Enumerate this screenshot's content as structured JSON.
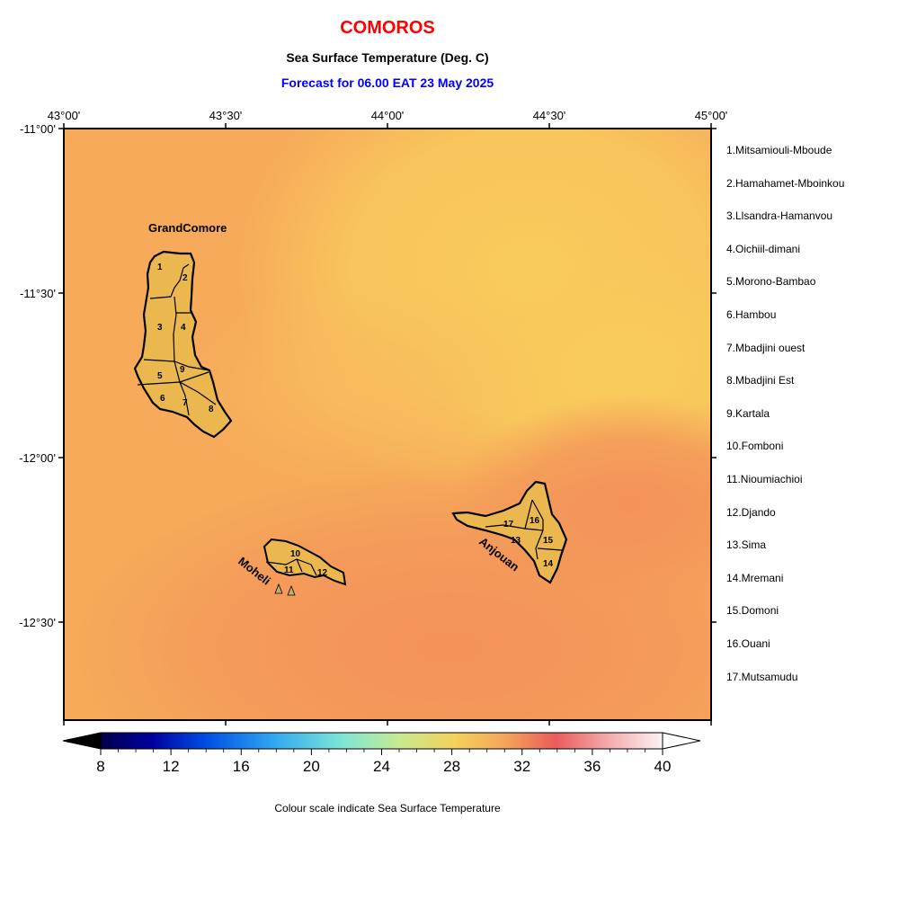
{
  "header": {
    "country": "COMOROS",
    "variable": "Sea Surface Temperature (Deg. C)",
    "forecast": "Forecast for  06.00 EAT 23 May 2025"
  },
  "axes": {
    "lon_labels": [
      "43°00'",
      "43°30'",
      "44°00'",
      "44°30'",
      "45°00'"
    ],
    "lat_labels": [
      "-11°00'",
      "-11°30'",
      "-12°00'",
      "-12°30'"
    ]
  },
  "islands": {
    "grand_comore": "GrandComore",
    "moheli": "Moheli",
    "anjouan": "Anjouan"
  },
  "region_numbers": [
    "1",
    "2",
    "3",
    "4",
    "5",
    "6",
    "7",
    "8",
    "9",
    "10",
    "11",
    "12",
    "13",
    "14",
    "15",
    "16",
    "17"
  ],
  "legend": [
    "1.Mitsamiouli-Mboude",
    "2.Hamahamet-Mboinkou",
    "3.Ll­sandra-Hamanvou",
    "4.Oichiil-dimani",
    "5.Morono-Bambao",
    "6.Hambou",
    "7.Mbadjini ouest",
    "8.Mbadjini Est",
    "9.Kartala",
    "10.Fomboni",
    "11.Nioumiachioi",
    "12.Djando",
    "13.Sima",
    "14.Mremani",
    "15.Domoni",
    "16.Ouani",
    "17.Mutsamudu"
  ],
  "colorbar": {
    "ticks": [
      "8",
      "12",
      "16",
      "20",
      "24",
      "28",
      "32",
      "36",
      "40"
    ],
    "caption": "Colour scale indicate Sea Surface Temperature"
  },
  "colors": {
    "title": "#ff0000",
    "forecast": "#0000ff",
    "sea_warm": "#f4965a",
    "sea_mild": "#f7b35a",
    "sea_cool": "#f9c95a",
    "land": "#eab84e"
  }
}
